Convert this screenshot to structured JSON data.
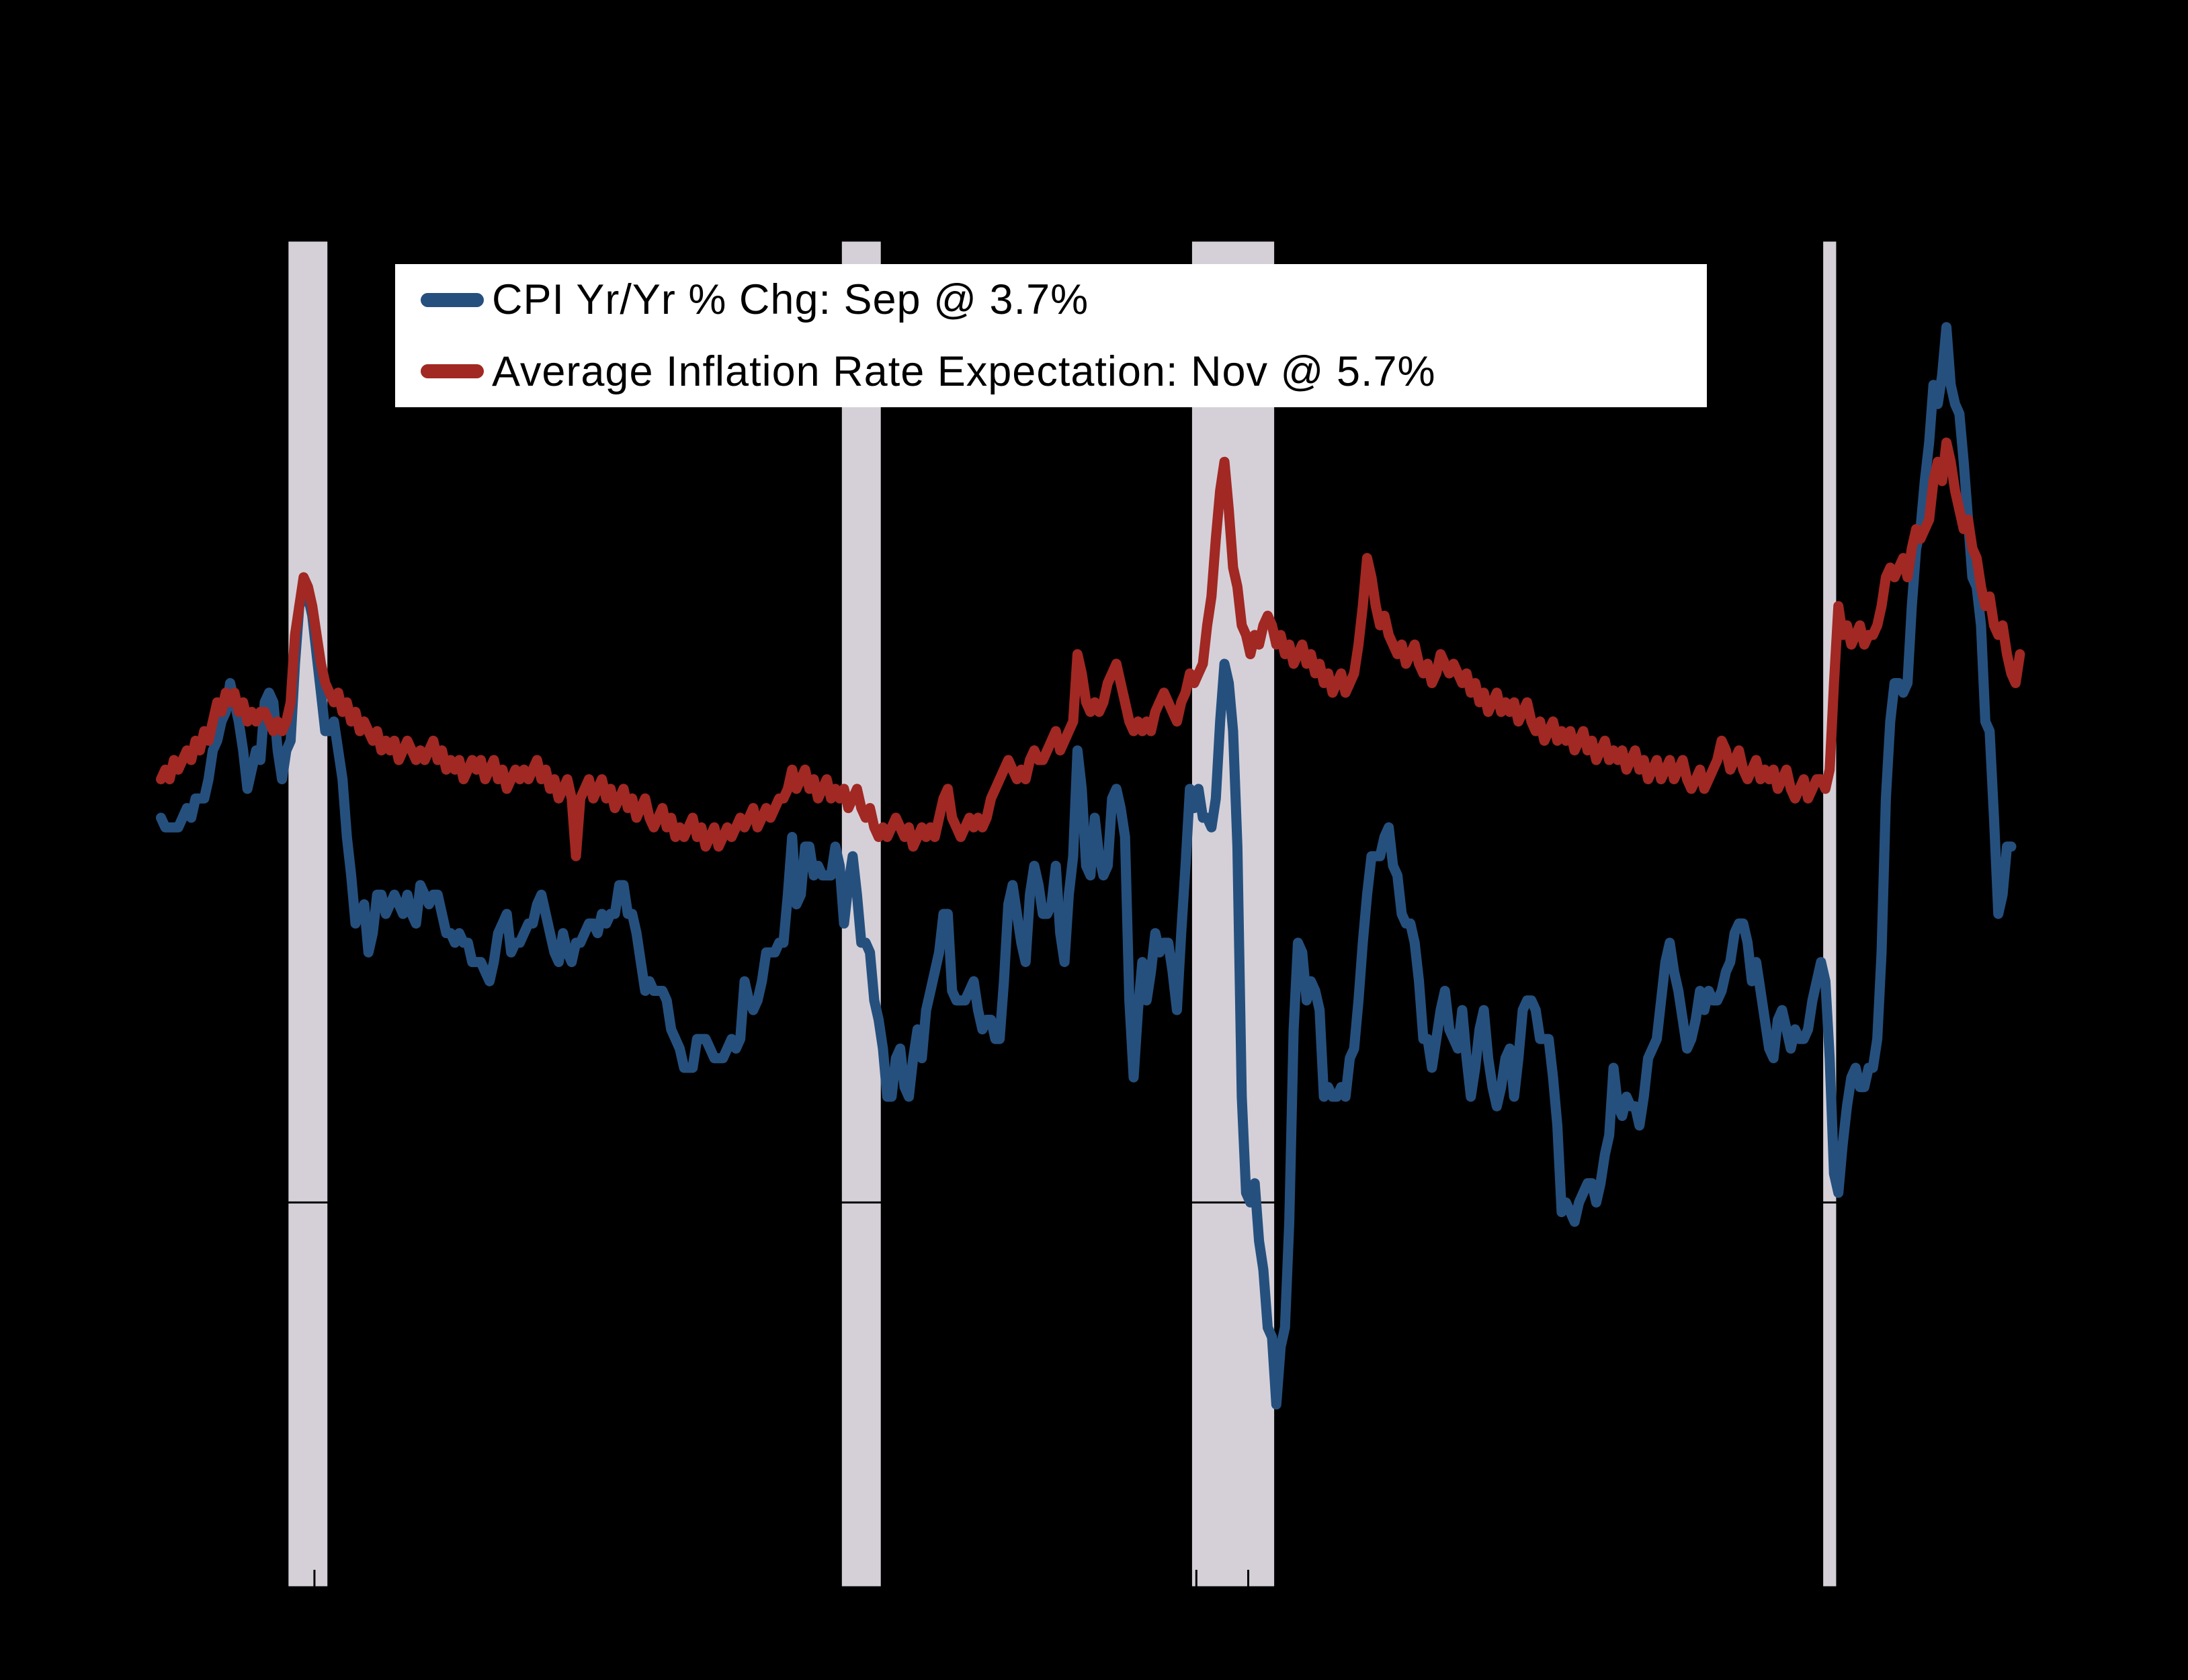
{
  "legend": {
    "items": [
      {
        "label": "CPI Yr/Yr % Chg: Sep @ 3.7%",
        "color": "#25507E"
      },
      {
        "label": "Average Inflation Rate Expectation: Nov @ 5.7%",
        "color": "#A12823"
      }
    ]
  },
  "colors": {
    "background": "#000000",
    "legend_background": "#FFFFFF",
    "legend_text": "#000000",
    "recession_band": "#D5D0D8",
    "axis": "#000000",
    "cpi_line": "#25507E",
    "expectation_line": "#A12823"
  },
  "chart_data": {
    "type": "line",
    "title": "",
    "xlabel": "",
    "ylabel": "",
    "ylim": [
      -4,
      10
    ],
    "xlim_years": [
      1987.4,
      2024.6
    ],
    "grid": "zero-line-only",
    "zero_gridline": 0,
    "legend_position": "upper-left",
    "x_tick_interval_years": 1,
    "recession_bands": [
      {
        "from": 1990.5,
        "to": 1991.25
      },
      {
        "from": 2001.167,
        "to": 2001.917
      },
      {
        "from": 2007.917,
        "to": 2009.5
      },
      {
        "from": 2020.083,
        "to": 2020.333
      }
    ],
    "series": [
      {
        "name": "CPI Yr/Yr % Chg: Sep @ 3.7%",
        "color": "#25507E",
        "start_year": 1988,
        "start_month": 1,
        "last_point_label": "Sep @ 3.7%",
        "values": [
          4.0,
          3.9,
          3.9,
          3.9,
          3.9,
          4.0,
          4.1,
          4.0,
          4.2,
          4.2,
          4.2,
          4.4,
          4.7,
          4.8,
          5.0,
          5.1,
          5.4,
          5.2,
          5.0,
          4.7,
          4.3,
          4.5,
          4.7,
          4.6,
          5.2,
          5.3,
          5.2,
          4.7,
          4.4,
          4.7,
          4.8,
          5.6,
          6.2,
          6.3,
          6.3,
          6.1,
          5.7,
          5.3,
          4.9,
          4.9,
          5.0,
          4.7,
          4.4,
          3.8,
          3.4,
          2.9,
          3.0,
          3.1,
          2.6,
          2.8,
          3.2,
          3.2,
          3.0,
          3.1,
          3.2,
          3.1,
          3.0,
          3.2,
          3.0,
          2.9,
          3.3,
          3.2,
          3.1,
          3.2,
          3.2,
          3.0,
          2.8,
          2.8,
          2.7,
          2.8,
          2.7,
          2.7,
          2.5,
          2.5,
          2.5,
          2.4,
          2.3,
          2.5,
          2.8,
          2.9,
          3.0,
          2.6,
          2.7,
          2.7,
          2.8,
          2.9,
          2.9,
          3.1,
          3.2,
          3.0,
          2.8,
          2.6,
          2.5,
          2.8,
          2.6,
          2.5,
          2.7,
          2.7,
          2.8,
          2.9,
          2.9,
          2.8,
          3.0,
          2.9,
          3.0,
          3.0,
          3.3,
          3.3,
          3.0,
          3.0,
          2.8,
          2.5,
          2.2,
          2.3,
          2.2,
          2.2,
          2.2,
          2.1,
          1.8,
          1.7,
          1.6,
          1.4,
          1.4,
          1.4,
          1.7,
          1.7,
          1.7,
          1.6,
          1.5,
          1.5,
          1.5,
          1.6,
          1.7,
          1.6,
          1.7,
          2.3,
          2.1,
          2.0,
          2.1,
          2.3,
          2.6,
          2.6,
          2.6,
          2.7,
          2.7,
          3.2,
          3.8,
          3.1,
          3.2,
          3.7,
          3.7,
          3.4,
          3.5,
          3.4,
          3.4,
          3.4,
          3.7,
          3.5,
          2.9,
          3.3,
          3.6,
          3.2,
          2.7,
          2.7,
          2.6,
          2.1,
          1.9,
          1.6,
          1.1,
          1.1,
          1.5,
          1.6,
          1.2,
          1.1,
          1.5,
          1.8,
          1.5,
          2.0,
          2.2,
          2.4,
          2.6,
          3.0,
          3.0,
          2.2,
          2.1,
          2.1,
          2.1,
          2.2,
          2.3,
          2.0,
          1.8,
          1.9,
          1.9,
          1.7,
          1.7,
          2.3,
          3.1,
          3.3,
          3.0,
          2.7,
          2.5,
          3.2,
          3.5,
          3.3,
          3.0,
          3.0,
          3.1,
          3.5,
          2.8,
          2.5,
          3.2,
          3.6,
          4.7,
          4.3,
          3.5,
          3.4,
          4.0,
          3.6,
          3.4,
          3.5,
          4.2,
          4.3,
          4.1,
          3.8,
          2.1,
          1.3,
          2.0,
          2.5,
          2.1,
          2.4,
          2.8,
          2.6,
          2.7,
          2.7,
          2.4,
          2.0,
          2.8,
          3.5,
          4.3,
          4.1,
          4.3,
          4.0,
          4.0,
          3.9,
          4.2,
          5.0,
          5.6,
          5.4,
          4.9,
          3.7,
          1.1,
          0.1,
          0.0,
          0.2,
          -0.4,
          -0.7,
          -1.3,
          -1.4,
          -2.1,
          -1.5,
          -1.3,
          -0.2,
          1.8,
          2.7,
          2.6,
          2.1,
          2.3,
          2.2,
          2.0,
          1.1,
          1.2,
          1.1,
          1.1,
          1.2,
          1.1,
          1.5,
          1.6,
          2.1,
          2.7,
          3.2,
          3.6,
          3.6,
          3.6,
          3.8,
          3.9,
          3.5,
          3.4,
          3.0,
          2.9,
          2.9,
          2.7,
          2.3,
          1.7,
          1.7,
          1.4,
          1.7,
          2.0,
          2.2,
          1.8,
          1.7,
          1.6,
          2.0,
          1.5,
          1.1,
          1.4,
          1.8,
          2.0,
          1.5,
          1.2,
          1.0,
          1.2,
          1.5,
          1.6,
          1.1,
          1.5,
          2.0,
          2.1,
          2.1,
          2.0,
          1.7,
          1.7,
          1.7,
          1.3,
          0.8,
          -0.1,
          0.0,
          -0.1,
          -0.2,
          0.0,
          0.1,
          0.2,
          0.2,
          0.0,
          0.2,
          0.5,
          0.7,
          1.4,
          1.0,
          0.9,
          1.1,
          1.0,
          1.0,
          0.8,
          1.1,
          1.5,
          1.6,
          1.7,
          2.1,
          2.5,
          2.7,
          2.4,
          2.2,
          1.9,
          1.6,
          1.7,
          1.9,
          2.2,
          2.0,
          2.2,
          2.1,
          2.1,
          2.2,
          2.4,
          2.5,
          2.8,
          2.9,
          2.9,
          2.7,
          2.3,
          2.5,
          2.2,
          1.9,
          1.6,
          1.5,
          1.9,
          2.0,
          1.8,
          1.6,
          1.8,
          1.7,
          1.7,
          1.8,
          2.1,
          2.3,
          2.5,
          2.3,
          1.5,
          0.3,
          0.1,
          0.6,
          1.0,
          1.3,
          1.4,
          1.2,
          1.2,
          1.4,
          1.4,
          1.7,
          2.6,
          4.2,
          5.0,
          5.4,
          5.4,
          5.3,
          5.4,
          6.2,
          6.8,
          7.0,
          7.5,
          7.9,
          8.5,
          8.3,
          8.6,
          9.1,
          8.5,
          8.3,
          8.2,
          7.7,
          7.1,
          6.5,
          6.4,
          6.0,
          5.0,
          4.9,
          4.0,
          3.0,
          3.2,
          3.7,
          3.7
        ]
      },
      {
        "name": "Average Inflation Rate Expectation: Nov @ 5.7%",
        "color": "#A12823",
        "start_year": 1988,
        "start_month": 1,
        "last_point_label": "Nov @ 5.7%",
        "values": [
          4.4,
          4.5,
          4.4,
          4.6,
          4.5,
          4.6,
          4.7,
          4.6,
          4.8,
          4.7,
          4.9,
          4.8,
          5.0,
          5.2,
          5.1,
          5.3,
          5.2,
          5.3,
          5.1,
          5.2,
          5.0,
          5.1,
          5.0,
          5.1,
          5.1,
          5.0,
          4.9,
          5.0,
          4.9,
          5.0,
          5.2,
          5.9,
          6.2,
          6.5,
          6.4,
          6.2,
          5.9,
          5.6,
          5.4,
          5.3,
          5.2,
          5.3,
          5.1,
          5.2,
          5.0,
          5.1,
          4.9,
          5.0,
          4.9,
          4.8,
          4.9,
          4.7,
          4.8,
          4.7,
          4.8,
          4.6,
          4.7,
          4.8,
          4.7,
          4.6,
          4.7,
          4.6,
          4.7,
          4.8,
          4.6,
          4.7,
          4.5,
          4.6,
          4.5,
          4.6,
          4.4,
          4.5,
          4.6,
          4.5,
          4.6,
          4.4,
          4.5,
          4.6,
          4.4,
          4.5,
          4.3,
          4.4,
          4.5,
          4.4,
          4.5,
          4.4,
          4.5,
          4.6,
          4.4,
          4.5,
          4.3,
          4.4,
          4.2,
          4.3,
          4.4,
          4.2,
          3.6,
          4.2,
          4.3,
          4.4,
          4.2,
          4.3,
          4.4,
          4.2,
          4.3,
          4.1,
          4.2,
          4.3,
          4.1,
          4.2,
          4.0,
          4.1,
          4.2,
          4.0,
          3.9,
          4.0,
          4.1,
          3.9,
          4.0,
          3.8,
          3.9,
          3.8,
          3.9,
          4.0,
          3.8,
          3.9,
          3.7,
          3.8,
          3.9,
          3.7,
          3.8,
          3.9,
          3.8,
          3.9,
          4.0,
          3.9,
          4.0,
          4.1,
          3.9,
          4.0,
          4.1,
          4.0,
          4.1,
          4.2,
          4.2,
          4.3,
          4.5,
          4.3,
          4.4,
          4.5,
          4.3,
          4.4,
          4.2,
          4.3,
          4.4,
          4.2,
          4.3,
          4.2,
          4.3,
          4.1,
          4.2,
          4.3,
          4.1,
          4.0,
          4.1,
          3.9,
          3.8,
          3.9,
          3.8,
          3.9,
          4.0,
          3.9,
          3.8,
          3.9,
          3.7,
          3.8,
          3.9,
          3.8,
          3.9,
          3.8,
          4.0,
          4.2,
          4.3,
          4.0,
          3.9,
          3.8,
          3.9,
          4.0,
          3.9,
          4.0,
          3.9,
          4.0,
          4.2,
          4.3,
          4.4,
          4.5,
          4.6,
          4.5,
          4.4,
          4.5,
          4.4,
          4.6,
          4.7,
          4.6,
          4.6,
          4.7,
          4.8,
          4.9,
          4.7,
          4.8,
          4.9,
          5.0,
          5.7,
          5.5,
          5.2,
          5.1,
          5.2,
          5.1,
          5.2,
          5.4,
          5.5,
          5.6,
          5.4,
          5.2,
          5.0,
          4.9,
          5.0,
          4.9,
          5.0,
          4.9,
          5.1,
          5.2,
          5.3,
          5.2,
          5.1,
          5.0,
          5.2,
          5.3,
          5.5,
          5.4,
          5.5,
          5.6,
          6.0,
          6.3,
          6.9,
          7.4,
          7.7,
          7.2,
          6.6,
          6.4,
          6.0,
          5.9,
          5.7,
          5.9,
          5.8,
          6.0,
          6.1,
          6.0,
          5.8,
          5.9,
          5.7,
          5.8,
          5.6,
          5.7,
          5.8,
          5.6,
          5.7,
          5.5,
          5.6,
          5.4,
          5.5,
          5.3,
          5.4,
          5.5,
          5.3,
          5.4,
          5.5,
          5.8,
          6.2,
          6.7,
          6.5,
          6.2,
          6.0,
          6.1,
          5.9,
          5.8,
          5.7,
          5.8,
          5.6,
          5.7,
          5.8,
          5.6,
          5.5,
          5.6,
          5.4,
          5.5,
          5.7,
          5.6,
          5.5,
          5.6,
          5.5,
          5.4,
          5.5,
          5.3,
          5.4,
          5.2,
          5.3,
          5.1,
          5.2,
          5.3,
          5.1,
          5.2,
          5.1,
          5.2,
          5.0,
          5.1,
          5.2,
          5.0,
          4.9,
          5.0,
          4.8,
          4.9,
          5.0,
          4.8,
          4.9,
          4.8,
          4.9,
          4.7,
          4.8,
          4.9,
          4.7,
          4.8,
          4.6,
          4.7,
          4.8,
          4.6,
          4.7,
          4.6,
          4.7,
          4.5,
          4.6,
          4.7,
          4.5,
          4.6,
          4.4,
          4.5,
          4.6,
          4.4,
          4.5,
          4.6,
          4.4,
          4.5,
          4.6,
          4.4,
          4.3,
          4.4,
          4.5,
          4.3,
          4.4,
          4.5,
          4.6,
          4.8,
          4.7,
          4.5,
          4.6,
          4.7,
          4.5,
          4.4,
          4.5,
          4.6,
          4.4,
          4.5,
          4.4,
          4.5,
          4.3,
          4.4,
          4.5,
          4.3,
          4.2,
          4.3,
          4.4,
          4.2,
          4.3,
          4.4,
          4.4,
          4.3,
          4.5,
          5.4,
          6.2,
          5.9,
          6.0,
          5.8,
          5.9,
          6.0,
          5.8,
          5.9,
          5.9,
          6.0,
          6.2,
          6.5,
          6.6,
          6.5,
          6.6,
          6.7,
          6.5,
          6.8,
          7.0,
          6.9,
          7.0,
          7.1,
          7.5,
          7.7,
          7.5,
          7.9,
          7.7,
          7.4,
          7.2,
          7.0,
          7.1,
          6.8,
          6.7,
          6.4,
          6.2,
          6.3,
          6.0,
          5.9,
          6.0,
          5.7,
          5.5,
          5.4,
          5.7
        ]
      }
    ]
  }
}
